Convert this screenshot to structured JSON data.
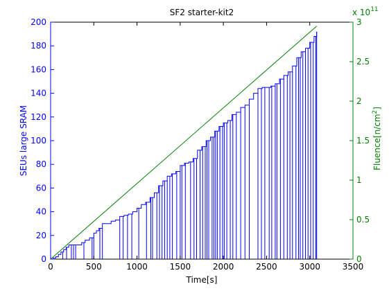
{
  "chart_data": {
    "type": "line",
    "title": "SF2 starter-kit2",
    "xlabel": "Time[s]",
    "ylabel_left": "SEUs large SRAM",
    "ylabel_right_main": "Fluence[n/cm",
    "ylabel_right_sup": "2",
    "ylabel_right_close": "]",
    "right_multiplier_base": "x 10",
    "right_multiplier_exp": "11",
    "xlim": [
      0,
      3500
    ],
    "ylim_left": [
      0,
      200
    ],
    "ylim_right": [
      0,
      3
    ],
    "x_ticks": [
      "0",
      "500",
      "1000",
      "1500",
      "2000",
      "2500",
      "3000",
      "3500"
    ],
    "y_left_ticks": [
      "0",
      "20",
      "40",
      "60",
      "80",
      "100",
      "120",
      "140",
      "160",
      "180",
      "200"
    ],
    "y_right_ticks": [
      "0",
      "0.5",
      "1",
      "1.5",
      "2",
      "2.5",
      "3"
    ],
    "grid": false,
    "colors": {
      "seu": "#0000ff",
      "fluence": "#008000",
      "left_axis": "#0000ff",
      "right_axis": "#008000"
    },
    "series": [
      {
        "axis": "right",
        "x": [
          0,
          3080
        ],
        "y": [
          0,
          2.95
        ]
      },
      {
        "axis": "left",
        "x": [
          0,
          30,
          60,
          90,
          120,
          150,
          180,
          210,
          240,
          270,
          300,
          330,
          360,
          400,
          450,
          500,
          530,
          560,
          600,
          650,
          700,
          750,
          800,
          850,
          900,
          950,
          1000,
          1050,
          1100,
          1150,
          1200,
          1250,
          1300,
          1350,
          1400,
          1450,
          1500,
          1550,
          1600,
          1650,
          1700,
          1750,
          1800,
          1850,
          1900,
          1950,
          2000,
          2050,
          2100,
          2150,
          2200,
          2250,
          2300,
          2350,
          2400,
          2450,
          2500,
          2550,
          2600,
          2650,
          2700,
          2750,
          2800,
          2850,
          2900,
          2950,
          3000,
          3050,
          3080
        ],
        "y": [
          0,
          1,
          2,
          4,
          6,
          8,
          10,
          12,
          12,
          12,
          12,
          12,
          14,
          16,
          18,
          22,
          24,
          26,
          30,
          30,
          32,
          33,
          36,
          37,
          38,
          40,
          43,
          46,
          48,
          52,
          56,
          62,
          66,
          70,
          72,
          74,
          79,
          81,
          82,
          85,
          92,
          95,
          100,
          103,
          108,
          112,
          115,
          117,
          122,
          124,
          128,
          130,
          135,
          140,
          144,
          145,
          145,
          146,
          148,
          152,
          155,
          158,
          163,
          170,
          175,
          178,
          183,
          188,
          192
        ]
      }
    ],
    "drops": [
      140,
      185,
      240,
      265,
      290,
      385,
      480,
      500,
      570,
      600,
      800,
      840,
      890,
      940,
      1020,
      1110,
      1160,
      1180,
      1230,
      1260,
      1290,
      1320,
      1350,
      1380,
      1410,
      1460,
      1500,
      1520,
      1560,
      1620,
      1660,
      1690,
      1730,
      1760,
      1790,
      1810,
      1830,
      1870,
      1890,
      1910,
      1930,
      1960,
      1990,
      2010,
      2040,
      2080,
      2110,
      2150,
      2200,
      2250,
      2300,
      2400,
      2440,
      2480,
      2530,
      2560,
      2600,
      2620,
      2660,
      2700,
      2740,
      2770,
      2800,
      2840,
      2870,
      2890,
      2920,
      2950,
      2980,
      3010,
      3040,
      3070
    ]
  }
}
